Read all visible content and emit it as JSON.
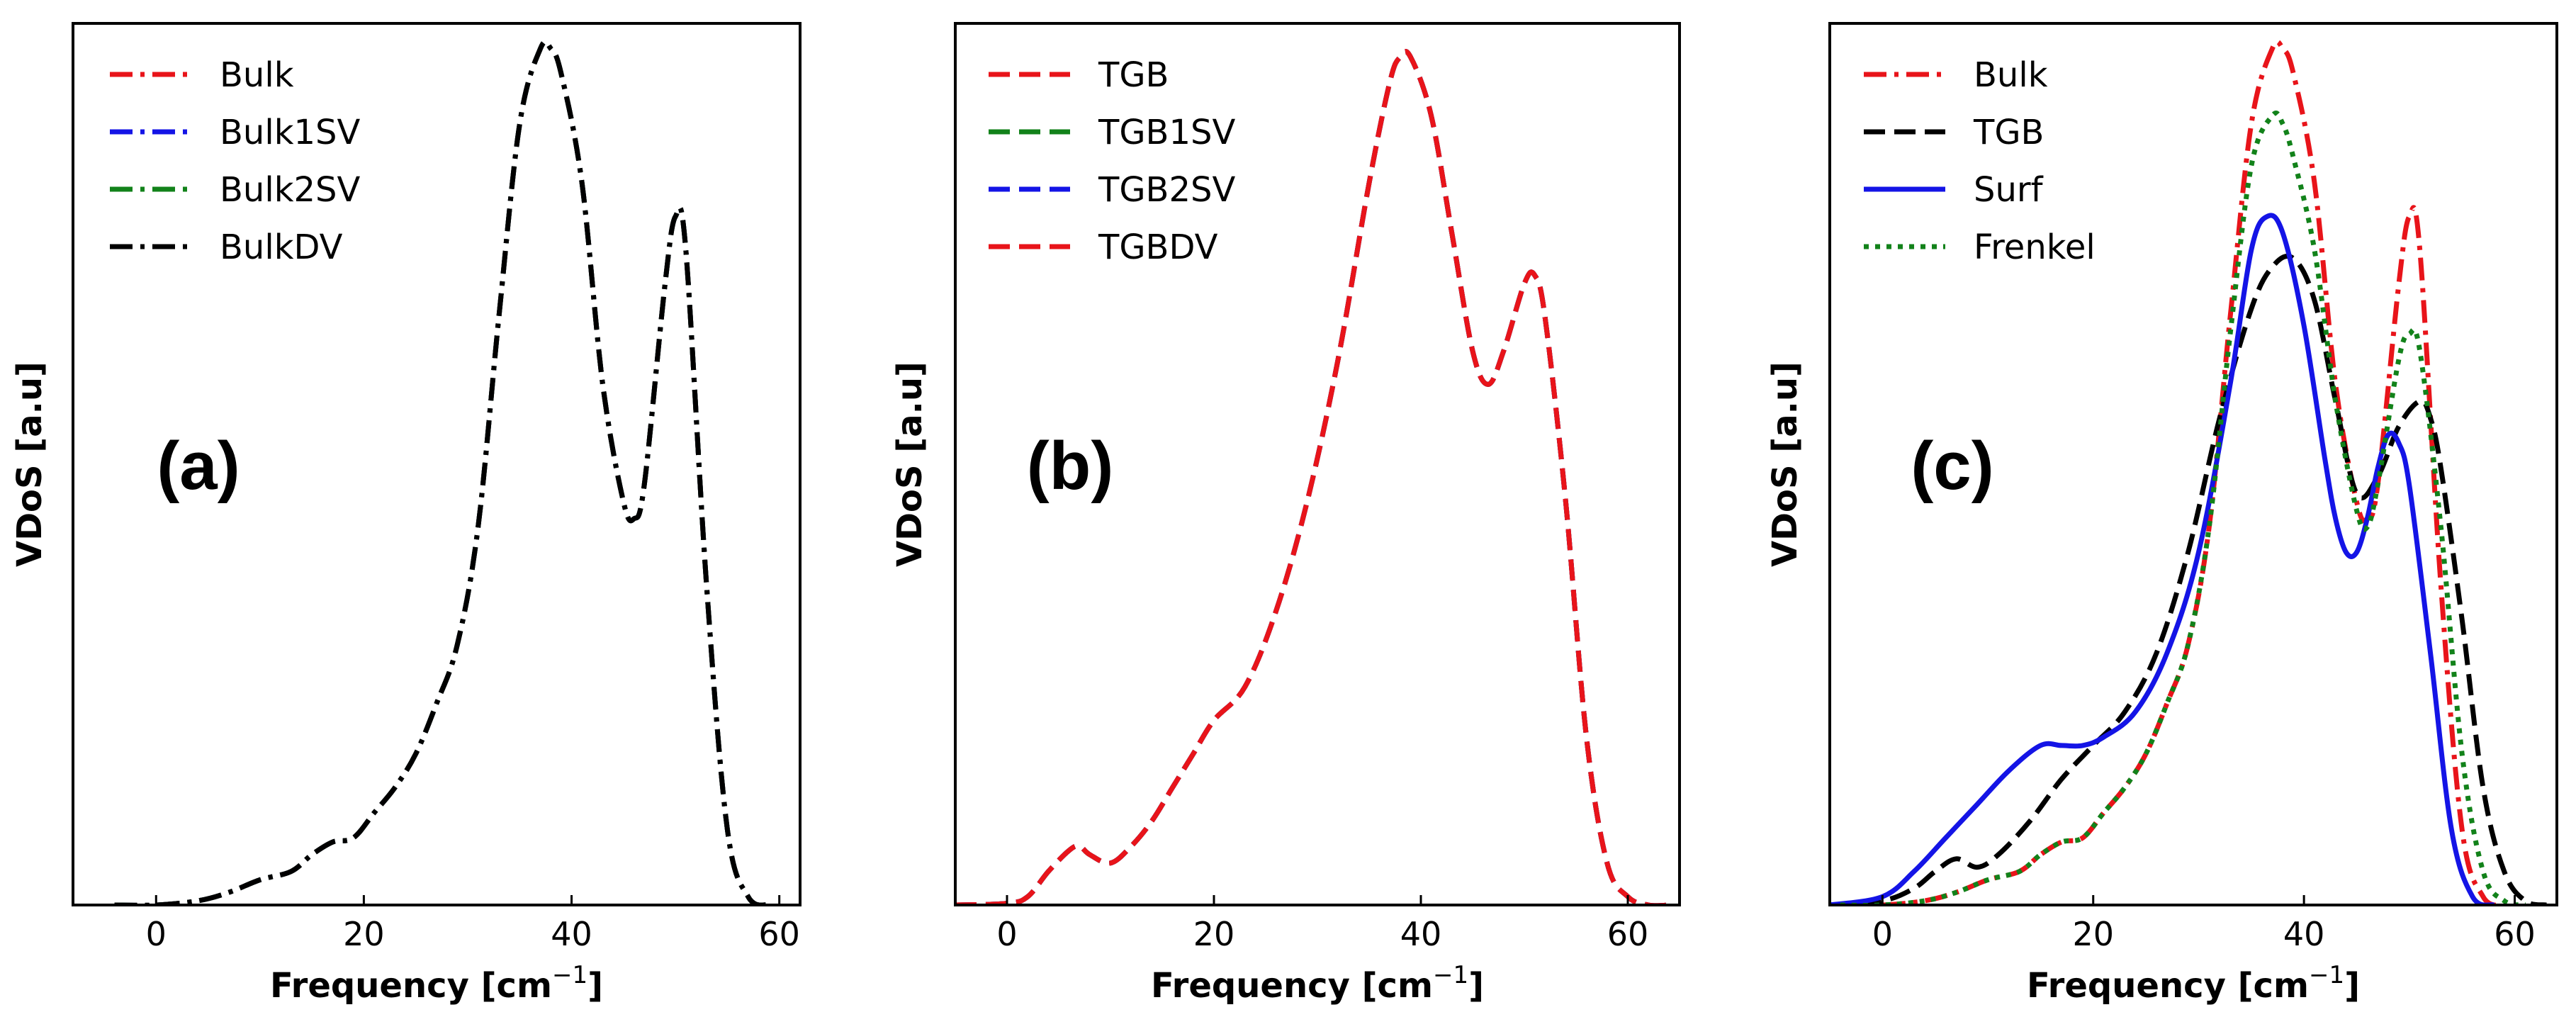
{
  "chart_data": [
    {
      "type": "line",
      "panel_label": "(a)",
      "xlabel": "Frequency [cm",
      "xlabel_sup": "−1",
      "xlabel_end": "]",
      "ylabel": "VDoS [a.u]",
      "xlim": [
        -8,
        62
      ],
      "ylim": [
        0,
        1.05
      ],
      "xticks": [
        0,
        20,
        40,
        60
      ],
      "legend_position": "upper-left",
      "series": [
        {
          "name": "Bulk",
          "color": "#e8141a",
          "dash": "dashdot",
          "width": 7,
          "x": [
            -4,
            0,
            4,
            7,
            10,
            13,
            15,
            17,
            19,
            21,
            23,
            25,
            27,
            29,
            31,
            33,
            35,
            37,
            38,
            39,
            41,
            43,
            45,
            46,
            47,
            49,
            50,
            51,
            53,
            55,
            57,
            59
          ],
          "y": [
            0,
            0,
            0.005,
            0.015,
            0.03,
            0.04,
            0.06,
            0.075,
            0.08,
            0.11,
            0.14,
            0.18,
            0.24,
            0.31,
            0.45,
            0.7,
            0.93,
            1.02,
            1.02,
            0.99,
            0.86,
            0.62,
            0.48,
            0.46,
            0.5,
            0.74,
            0.82,
            0.78,
            0.38,
            0.09,
            0.01,
            0
          ]
        },
        {
          "name": "Bulk1SV",
          "color": "#1414e6",
          "dash": "dashdot",
          "width": 7,
          "x": [
            -4,
            0,
            4,
            7,
            10,
            13,
            15,
            17,
            19,
            21,
            23,
            25,
            27,
            29,
            31,
            33,
            35,
            37,
            38,
            39,
            41,
            43,
            45,
            46,
            47,
            49,
            50,
            51,
            53,
            55,
            57,
            59
          ],
          "y": [
            0,
            0,
            0.005,
            0.015,
            0.03,
            0.04,
            0.06,
            0.075,
            0.08,
            0.11,
            0.14,
            0.18,
            0.24,
            0.31,
            0.45,
            0.7,
            0.93,
            1.02,
            1.02,
            0.99,
            0.86,
            0.62,
            0.48,
            0.46,
            0.5,
            0.74,
            0.82,
            0.78,
            0.38,
            0.09,
            0.01,
            0
          ]
        },
        {
          "name": "Bulk2SV",
          "color": "#12821a",
          "dash": "dashdot",
          "width": 7,
          "x": [
            -4,
            0,
            4,
            7,
            10,
            13,
            15,
            17,
            19,
            21,
            23,
            25,
            27,
            29,
            31,
            33,
            35,
            37,
            38,
            39,
            41,
            43,
            45,
            46,
            47,
            49,
            50,
            51,
            53,
            55,
            57,
            59
          ],
          "y": [
            0,
            0,
            0.005,
            0.015,
            0.03,
            0.04,
            0.06,
            0.075,
            0.08,
            0.11,
            0.14,
            0.18,
            0.24,
            0.31,
            0.45,
            0.7,
            0.93,
            1.02,
            1.02,
            0.99,
            0.86,
            0.62,
            0.48,
            0.46,
            0.5,
            0.74,
            0.82,
            0.78,
            0.38,
            0.09,
            0.01,
            0
          ]
        },
        {
          "name": "BulkDV",
          "color": "#000000",
          "dash": "dashdot",
          "width": 7,
          "x": [
            -4,
            0,
            4,
            7,
            10,
            13,
            15,
            17,
            19,
            21,
            23,
            25,
            27,
            29,
            31,
            33,
            35,
            37,
            38,
            39,
            41,
            43,
            45,
            46,
            47,
            49,
            50,
            51,
            53,
            55,
            57,
            59
          ],
          "y": [
            0,
            0,
            0.005,
            0.015,
            0.03,
            0.04,
            0.06,
            0.075,
            0.08,
            0.11,
            0.14,
            0.18,
            0.24,
            0.31,
            0.45,
            0.7,
            0.93,
            1.02,
            1.02,
            0.99,
            0.86,
            0.62,
            0.48,
            0.46,
            0.5,
            0.74,
            0.82,
            0.78,
            0.38,
            0.09,
            0.01,
            0
          ]
        }
      ]
    },
    {
      "type": "line",
      "panel_label": "(b)",
      "xlabel": "Frequency [cm",
      "xlabel_sup": "−1",
      "xlabel_end": "]",
      "ylabel": "VDoS [a.u]",
      "xlim": [
        -5,
        65
      ],
      "ylim": [
        0,
        1.05
      ],
      "xticks": [
        0,
        20,
        40,
        60
      ],
      "legend_position": "upper-left",
      "series": [
        {
          "name": "TGB",
          "color": "#e8141a",
          "dash": "dashed",
          "width": 7,
          "x": [
            -5,
            0,
            2,
            4,
            6,
            7,
            8,
            10,
            12,
            14,
            16,
            18,
            20,
            23,
            26,
            29,
            32,
            35,
            37,
            38,
            39,
            41,
            43,
            45,
            46.5,
            48,
            50,
            51,
            52,
            54,
            56,
            58,
            60,
            62,
            64
          ],
          "y": [
            0,
            0.002,
            0.01,
            0.04,
            0.065,
            0.07,
            0.06,
            0.05,
            0.07,
            0.1,
            0.14,
            0.18,
            0.22,
            0.26,
            0.35,
            0.48,
            0.65,
            0.86,
            0.98,
            1.01,
            1.01,
            0.94,
            0.8,
            0.66,
            0.62,
            0.66,
            0.74,
            0.75,
            0.7,
            0.48,
            0.2,
            0.05,
            0.01,
            0,
            0
          ]
        },
        {
          "name": "TGB1SV",
          "color": "#12821a",
          "dash": "dashed",
          "width": 7,
          "x": [
            -5,
            0,
            2,
            4,
            6,
            7,
            8,
            10,
            12,
            14,
            16,
            18,
            20,
            23,
            26,
            29,
            32,
            35,
            37,
            38,
            39,
            41,
            43,
            45,
            46.5,
            48,
            50,
            51,
            52,
            54,
            56,
            58,
            60,
            62,
            64
          ],
          "y": [
            0,
            0.002,
            0.01,
            0.04,
            0.065,
            0.07,
            0.06,
            0.05,
            0.07,
            0.1,
            0.14,
            0.18,
            0.22,
            0.26,
            0.35,
            0.48,
            0.65,
            0.86,
            0.98,
            1.01,
            1.01,
            0.94,
            0.8,
            0.66,
            0.62,
            0.66,
            0.74,
            0.75,
            0.7,
            0.48,
            0.2,
            0.05,
            0.01,
            0,
            0
          ]
        },
        {
          "name": "TGB2SV",
          "color": "#1414e6",
          "dash": "dashed",
          "width": 7,
          "x": [
            -5,
            0,
            2,
            4,
            6,
            7,
            8,
            10,
            12,
            14,
            16,
            18,
            20,
            23,
            26,
            29,
            32,
            35,
            37,
            38,
            39,
            41,
            43,
            45,
            46.5,
            48,
            50,
            51,
            52,
            54,
            56,
            58,
            60,
            62,
            64
          ],
          "y": [
            0,
            0.002,
            0.01,
            0.04,
            0.065,
            0.07,
            0.06,
            0.05,
            0.07,
            0.1,
            0.14,
            0.18,
            0.22,
            0.26,
            0.35,
            0.48,
            0.65,
            0.86,
            0.98,
            1.01,
            1.01,
            0.94,
            0.8,
            0.66,
            0.62,
            0.66,
            0.74,
            0.75,
            0.7,
            0.48,
            0.2,
            0.05,
            0.01,
            0,
            0
          ]
        },
        {
          "name": "TGBDV",
          "color": "#e8141a",
          "dash": "dashed",
          "width": 7,
          "x": [
            -5,
            0,
            2,
            4,
            6,
            7,
            8,
            10,
            12,
            14,
            16,
            18,
            20,
            23,
            26,
            29,
            32,
            35,
            37,
            38,
            39,
            41,
            43,
            45,
            46.5,
            48,
            50,
            51,
            52,
            54,
            56,
            58,
            60,
            62,
            64
          ],
          "y": [
            0,
            0.002,
            0.01,
            0.04,
            0.065,
            0.07,
            0.06,
            0.05,
            0.07,
            0.1,
            0.14,
            0.18,
            0.22,
            0.26,
            0.35,
            0.48,
            0.65,
            0.86,
            0.98,
            1.01,
            1.01,
            0.94,
            0.8,
            0.66,
            0.62,
            0.66,
            0.74,
            0.75,
            0.7,
            0.48,
            0.2,
            0.05,
            0.01,
            0,
            0
          ]
        }
      ]
    },
    {
      "type": "line",
      "panel_label": "(c)",
      "xlabel": "Frequency [cm",
      "xlabel_sup": "−1",
      "xlabel_end": "]",
      "ylabel": "VDoS [a.u]",
      "xlim": [
        -5,
        64
      ],
      "ylim": [
        0,
        1.05
      ],
      "xticks": [
        0,
        20,
        40,
        60
      ],
      "legend_position": "upper-left",
      "series": [
        {
          "name": "Bulk",
          "color": "#e8141a",
          "dash": "dashdot",
          "width": 7,
          "x": [
            -4,
            0,
            4,
            7,
            10,
            13,
            15,
            17,
            19,
            21,
            23,
            25,
            27,
            29,
            31,
            33,
            35,
            37,
            38,
            39,
            41,
            43,
            45,
            46,
            47,
            49,
            50,
            51,
            53,
            55,
            57,
            59
          ],
          "y": [
            0,
            0,
            0.005,
            0.015,
            0.03,
            0.04,
            0.06,
            0.075,
            0.08,
            0.11,
            0.14,
            0.18,
            0.24,
            0.31,
            0.45,
            0.7,
            0.93,
            1.02,
            1.02,
            0.99,
            0.86,
            0.62,
            0.48,
            0.46,
            0.5,
            0.74,
            0.82,
            0.78,
            0.38,
            0.09,
            0.01,
            0
          ]
        },
        {
          "name": "TGB",
          "color": "#000000",
          "dash": "dashed",
          "width": 7,
          "x": [
            -5,
            0,
            3,
            5,
            7,
            9,
            11,
            14,
            17,
            20,
            23,
            26,
            29,
            32,
            35,
            37,
            39,
            41,
            43,
            45,
            47,
            49,
            51,
            52,
            53,
            55,
            57,
            59,
            61,
            63
          ],
          "y": [
            0,
            0.005,
            0.02,
            0.04,
            0.055,
            0.045,
            0.06,
            0.1,
            0.15,
            0.19,
            0.23,
            0.3,
            0.42,
            0.58,
            0.71,
            0.76,
            0.77,
            0.72,
            0.6,
            0.49,
            0.51,
            0.57,
            0.6,
            0.58,
            0.52,
            0.34,
            0.14,
            0.04,
            0.005,
            0
          ]
        },
        {
          "name": "Surf",
          "color": "#1414e6",
          "dash": "solid",
          "width": 7,
          "x": [
            -5,
            0,
            3,
            6,
            9,
            12,
            15,
            17,
            19,
            21,
            24,
            27,
            30,
            33,
            35,
            36.5,
            38,
            40,
            42,
            43,
            44,
            45,
            46,
            47,
            48,
            49,
            50,
            52,
            54,
            56,
            58
          ],
          "y": [
            0,
            0.01,
            0.04,
            0.08,
            0.12,
            0.16,
            0.19,
            0.19,
            0.19,
            0.2,
            0.23,
            0.3,
            0.42,
            0.62,
            0.78,
            0.82,
            0.8,
            0.69,
            0.53,
            0.46,
            0.42,
            0.42,
            0.46,
            0.52,
            0.56,
            0.55,
            0.5,
            0.3,
            0.09,
            0.01,
            0
          ]
        },
        {
          "name": "Frenkel",
          "color": "#12821a",
          "dash": "dotted",
          "width": 7,
          "x": [
            -4,
            0,
            4,
            7,
            10,
            13,
            15,
            17,
            19,
            21,
            23,
            25,
            27,
            29,
            31,
            33,
            35,
            37,
            38,
            39,
            41,
            43,
            45,
            46,
            47,
            49,
            50,
            51,
            53,
            55,
            57,
            59,
            61
          ],
          "y": [
            0,
            0,
            0.005,
            0.015,
            0.03,
            0.04,
            0.06,
            0.075,
            0.08,
            0.11,
            0.14,
            0.18,
            0.24,
            0.31,
            0.45,
            0.68,
            0.88,
            0.94,
            0.93,
            0.89,
            0.78,
            0.6,
            0.47,
            0.45,
            0.5,
            0.65,
            0.68,
            0.66,
            0.45,
            0.18,
            0.04,
            0.005,
            0
          ]
        }
      ]
    }
  ]
}
